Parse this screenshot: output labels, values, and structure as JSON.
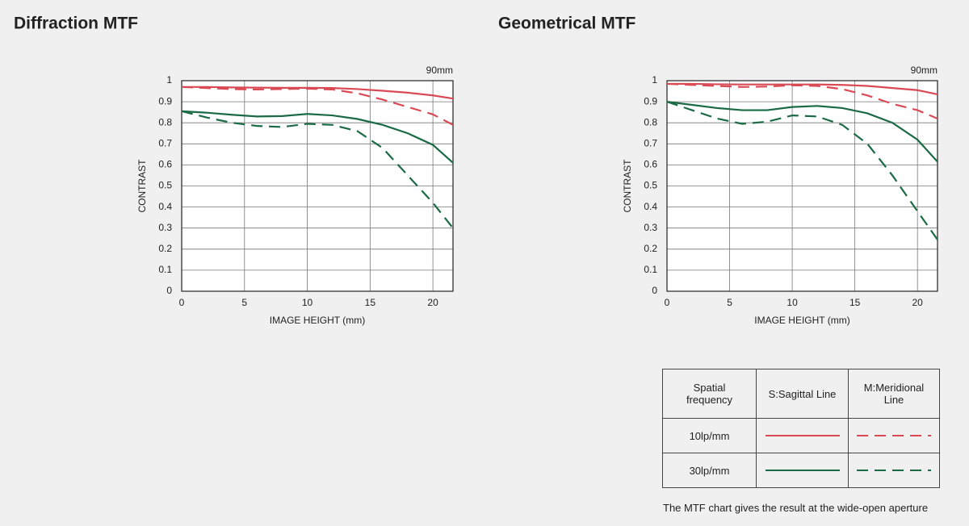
{
  "chart_data": [
    {
      "type": "line",
      "title": "Diffraction MTF",
      "annotation": "90mm",
      "xlabel": "IMAGE HEIGHT (mm)",
      "ylabel": "CONTRAST",
      "x": [
        0,
        2,
        4,
        6,
        8,
        10,
        12,
        14,
        16,
        18,
        20,
        21.6
      ],
      "series": [
        {
          "color": "#d94a55",
          "style": "solid",
          "values": [
            0.97,
            0.97,
            0.968,
            0.967,
            0.966,
            0.966,
            0.965,
            0.96,
            0.952,
            0.943,
            0.93,
            0.915
          ]
        },
        {
          "color": "#d94a55",
          "style": "dashed",
          "values": [
            0.97,
            0.965,
            0.96,
            0.958,
            0.96,
            0.962,
            0.958,
            0.94,
            0.91,
            0.875,
            0.84,
            0.79
          ]
        },
        {
          "color": "#1a6b45",
          "style": "solid",
          "values": [
            0.855,
            0.848,
            0.838,
            0.83,
            0.832,
            0.842,
            0.835,
            0.818,
            0.79,
            0.75,
            0.695,
            0.61
          ]
        },
        {
          "color": "#1a6b45",
          "style": "dashed",
          "values": [
            0.855,
            0.825,
            0.8,
            0.785,
            0.78,
            0.795,
            0.79,
            0.76,
            0.68,
            0.55,
            0.42,
            0.3
          ]
        }
      ],
      "xlim": [
        0,
        21.6
      ],
      "xticks": [
        0,
        5,
        10,
        15,
        20
      ],
      "ylim": [
        0,
        1
      ],
      "yticks": [
        0,
        0.1,
        0.2,
        0.3,
        0.4,
        0.5,
        0.6,
        0.7,
        0.8,
        0.9,
        1
      ],
      "grid": true
    },
    {
      "type": "line",
      "title": "Geometrical MTF",
      "annotation": "90mm",
      "xlabel": "IMAGE HEIGHT (mm)",
      "ylabel": "CONTRAST",
      "x": [
        0,
        2,
        4,
        6,
        8,
        10,
        12,
        14,
        16,
        18,
        20,
        21.6
      ],
      "series": [
        {
          "color": "#d94a55",
          "style": "solid",
          "values": [
            0.985,
            0.985,
            0.983,
            0.982,
            0.982,
            0.982,
            0.982,
            0.98,
            0.975,
            0.965,
            0.955,
            0.935
          ]
        },
        {
          "color": "#d94a55",
          "style": "dashed",
          "values": [
            0.985,
            0.98,
            0.975,
            0.97,
            0.972,
            0.978,
            0.975,
            0.96,
            0.93,
            0.89,
            0.86,
            0.82
          ]
        },
        {
          "color": "#1a6b45",
          "style": "solid",
          "values": [
            0.9,
            0.885,
            0.87,
            0.86,
            0.86,
            0.875,
            0.88,
            0.87,
            0.845,
            0.8,
            0.72,
            0.615
          ]
        },
        {
          "color": "#1a6b45",
          "style": "dashed",
          "values": [
            0.9,
            0.86,
            0.82,
            0.795,
            0.805,
            0.835,
            0.83,
            0.79,
            0.7,
            0.55,
            0.38,
            0.245
          ]
        }
      ],
      "xlim": [
        0,
        21.6
      ],
      "xticks": [
        0,
        5,
        10,
        15,
        20
      ],
      "ylim": [
        0,
        1
      ],
      "yticks": [
        0,
        0.1,
        0.2,
        0.3,
        0.4,
        0.5,
        0.6,
        0.7,
        0.8,
        0.9,
        1
      ],
      "grid": true
    }
  ],
  "legend": {
    "header": [
      "Spatial frequency",
      "S:Sagittal Line",
      "M:Meridional Line"
    ],
    "rows": [
      "10lp/mm",
      "30lp/mm"
    ]
  },
  "note": "The MTF chart gives the result at the wide-open aperture"
}
